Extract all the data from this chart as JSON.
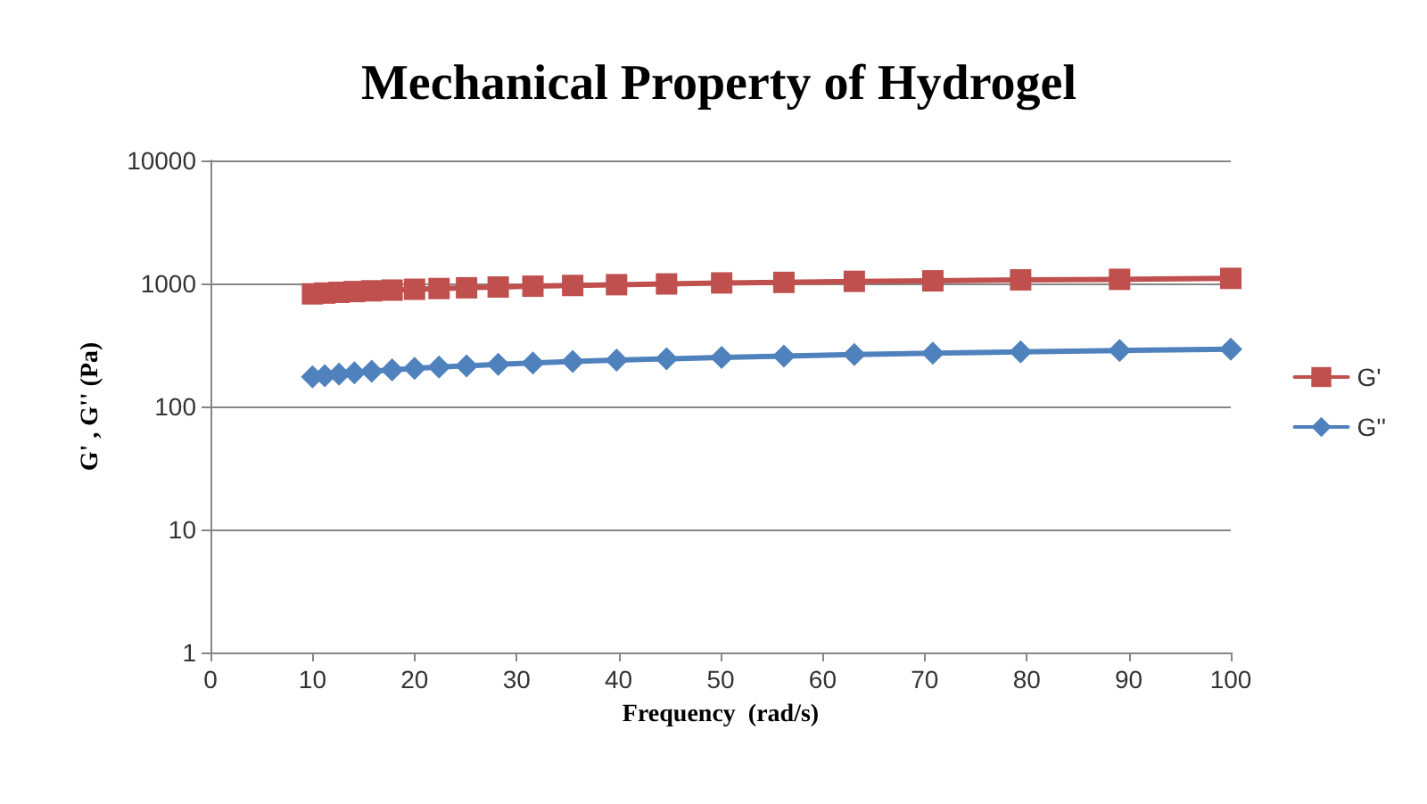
{
  "chart_data": {
    "type": "line",
    "title": "Mechanical Property of Hydrogel",
    "xlabel": "Frequency  (rad/s)",
    "ylabel": "G' , G'' (Pa)",
    "x": [
      10,
      11.2,
      12.6,
      14.1,
      15.8,
      17.8,
      20,
      22.4,
      25.1,
      28.2,
      31.6,
      35.5,
      39.8,
      44.7,
      50.1,
      56.2,
      63.1,
      70.8,
      79.4,
      89.1,
      100
    ],
    "series": [
      {
        "name": "G'",
        "color": "#c0504d",
        "marker": "square",
        "values": [
          823,
          835,
          847,
          859,
          871,
          883,
          897,
          909,
          922,
          935,
          950,
          963,
          977,
          991,
          1010,
          1020,
          1040,
          1050,
          1070,
          1080,
          1100
        ]
      },
      {
        "name": "G''",
        "color": "#4f81bd",
        "marker": "diamond",
        "values": [
          174,
          178,
          183,
          188,
          193,
          198,
          204,
          209,
          214,
          220,
          226,
          232,
          238,
          244,
          250,
          257,
          264,
          271,
          278,
          285,
          292
        ]
      }
    ],
    "xlim": [
      0,
      100
    ],
    "xticks": [
      0,
      10,
      20,
      30,
      40,
      50,
      60,
      70,
      80,
      90,
      100
    ],
    "ylim": [
      1,
      10000
    ],
    "yticks": [
      1,
      10,
      100,
      1000,
      10000
    ],
    "log": "y",
    "grid": "y",
    "legend": "right",
    "line_style": "solid"
  }
}
